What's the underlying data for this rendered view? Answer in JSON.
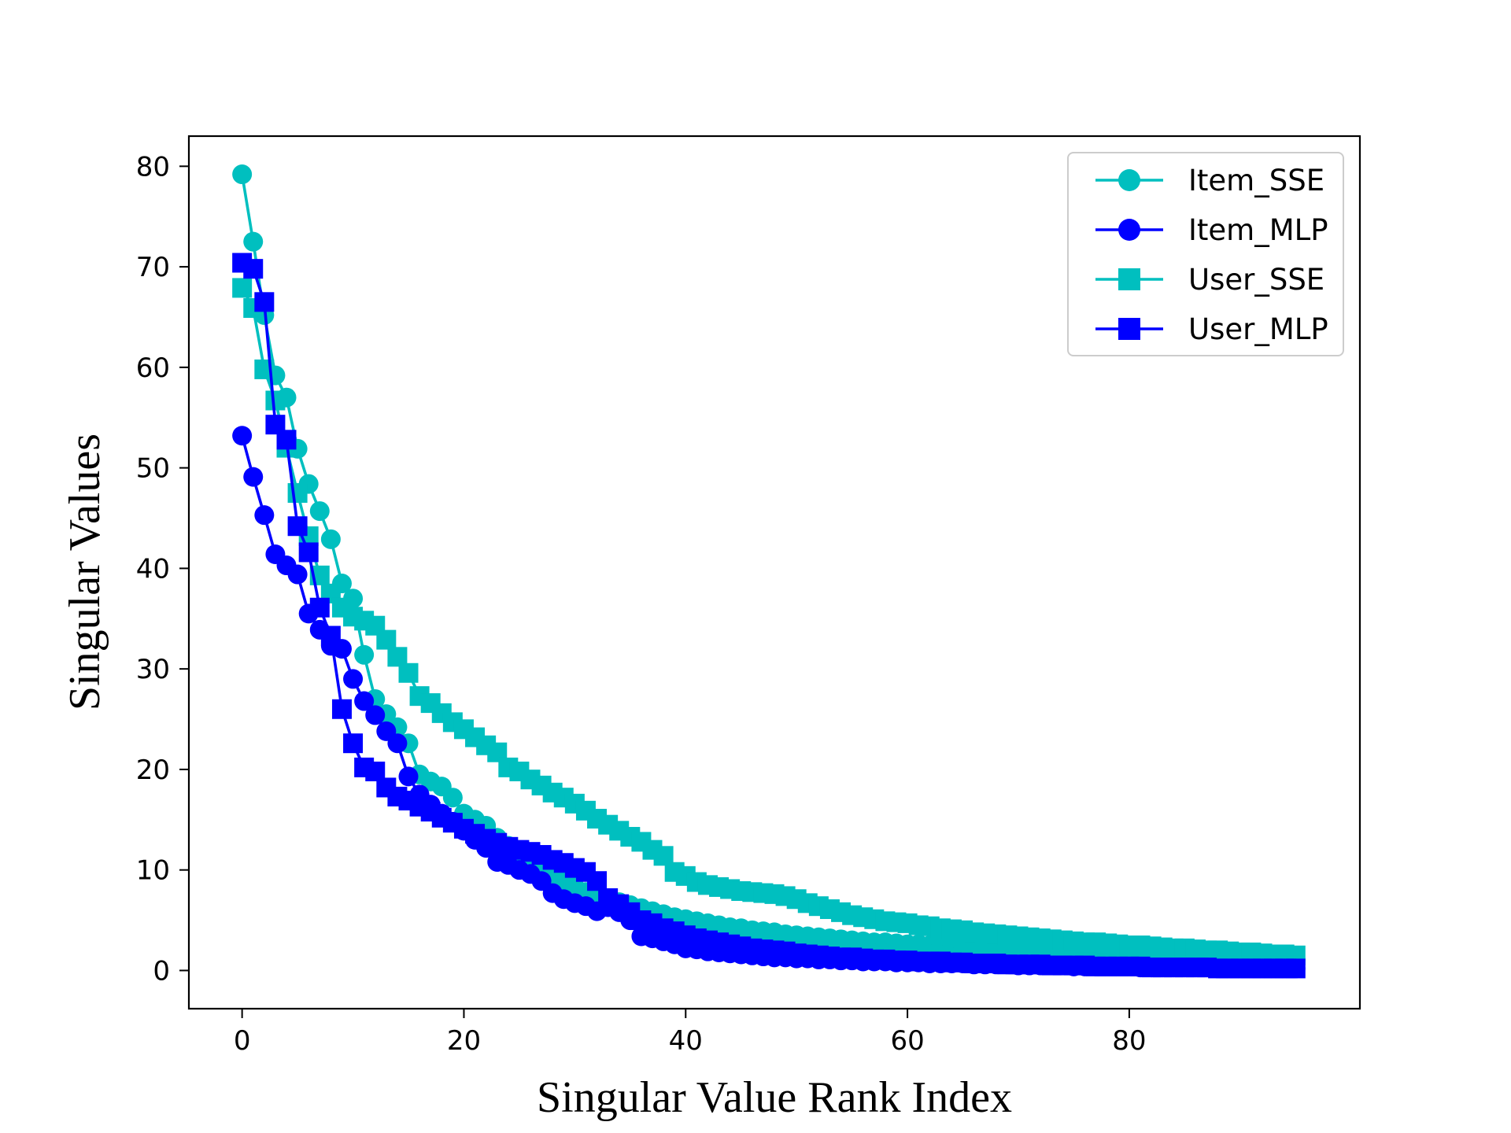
{
  "chart_data": {
    "type": "line",
    "title": "",
    "xlabel": "Singular Value Rank Index",
    "ylabel": "Singular Values",
    "xlim": [
      -4.8,
      100.8
    ],
    "ylim": [
      -3.8,
      83.0
    ],
    "xticks": [
      0,
      20,
      40,
      60,
      80
    ],
    "yticks": [
      0,
      10,
      20,
      30,
      40,
      50,
      60,
      70,
      80
    ],
    "legend_position": "top-right",
    "grid": false,
    "series": [
      {
        "name": "Item_SSE",
        "color": "#00bfbf",
        "marker": "circle",
        "values": [
          79.2,
          72.5,
          65.2,
          59.2,
          57.0,
          51.9,
          48.4,
          45.7,
          42.9,
          38.5,
          37.0,
          31.4,
          27.0,
          25.5,
          24.2,
          22.6,
          19.5,
          18.8,
          18.3,
          17.2,
          15.6,
          15.0,
          14.4,
          13.2,
          12.4,
          11.6,
          11.1,
          10.2,
          9.4,
          8.8,
          8.3,
          7.8,
          7.4,
          7.1,
          6.8,
          6.5,
          6.2,
          5.9,
          5.6,
          5.3,
          5.1,
          4.9,
          4.7,
          4.5,
          4.3,
          4.2,
          4.0,
          3.9,
          3.8,
          3.6,
          3.5,
          3.4,
          3.3,
          3.2,
          3.1,
          3.0,
          2.9,
          2.8,
          2.8,
          2.7,
          2.6,
          2.6,
          2.5,
          2.4,
          2.4,
          2.3,
          2.3,
          2.2,
          2.2,
          2.1,
          2.1,
          2.0,
          2.0,
          1.9,
          1.9,
          1.8,
          1.8,
          1.8,
          1.7,
          1.7,
          1.6,
          1.6,
          1.6,
          1.5,
          1.5,
          1.5,
          1.4,
          1.4,
          1.4,
          1.3,
          1.3,
          1.3,
          1.2,
          1.2,
          1.2,
          1.1
        ]
      },
      {
        "name": "Item_MLP",
        "color": "#0000ff",
        "marker": "circle",
        "values": [
          53.2,
          49.1,
          45.3,
          41.4,
          40.3,
          39.4,
          35.5,
          33.9,
          32.3,
          32.0,
          29.0,
          26.8,
          25.4,
          23.8,
          22.6,
          19.3,
          17.5,
          16.5,
          15.6,
          14.8,
          13.9,
          13.0,
          12.2,
          10.8,
          10.5,
          10.0,
          9.6,
          8.9,
          7.7,
          7.1,
          6.7,
          6.4,
          5.9,
          6.3,
          5.8,
          5.0,
          3.4,
          3.2,
          2.9,
          2.6,
          2.2,
          2.1,
          1.9,
          1.8,
          1.7,
          1.6,
          1.5,
          1.4,
          1.3,
          1.3,
          1.2,
          1.2,
          1.1,
          1.1,
          1.0,
          1.0,
          0.9,
          0.9,
          0.9,
          0.8,
          0.8,
          0.8,
          0.7,
          0.7,
          0.7,
          0.7,
          0.6,
          0.6,
          0.6,
          0.6,
          0.5,
          0.5,
          0.5,
          0.5,
          0.5,
          0.4,
          0.4,
          0.4,
          0.4,
          0.4,
          0.4,
          0.3,
          0.3,
          0.3,
          0.3,
          0.3,
          0.3,
          0.3,
          0.2,
          0.2,
          0.2,
          0.2,
          0.2,
          0.2,
          0.2,
          0.2
        ]
      },
      {
        "name": "User_SSE",
        "color": "#00bfbf",
        "marker": "square",
        "values": [
          67.9,
          65.9,
          59.8,
          56.7,
          52.0,
          47.5,
          43.2,
          39.3,
          37.5,
          36.1,
          35.2,
          34.8,
          34.3,
          32.9,
          31.2,
          29.6,
          27.3,
          26.6,
          25.6,
          24.7,
          24.0,
          23.2,
          22.4,
          21.7,
          20.2,
          19.8,
          19.0,
          18.4,
          17.7,
          17.2,
          16.6,
          15.9,
          15.1,
          14.5,
          13.9,
          13.3,
          12.8,
          12.0,
          11.4,
          9.8,
          9.4,
          8.8,
          8.5,
          8.3,
          8.1,
          7.9,
          7.8,
          7.7,
          7.6,
          7.4,
          7.1,
          6.7,
          6.4,
          6.1,
          5.8,
          5.5,
          5.3,
          5.1,
          4.9,
          4.8,
          4.7,
          4.5,
          4.4,
          4.2,
          4.1,
          4.0,
          3.8,
          3.7,
          3.6,
          3.5,
          3.4,
          3.3,
          3.2,
          3.1,
          3.0,
          2.9,
          2.8,
          2.8,
          2.7,
          2.6,
          2.5,
          2.5,
          2.4,
          2.3,
          2.2,
          2.2,
          2.1,
          2.0,
          2.0,
          1.9,
          1.8,
          1.8,
          1.7,
          1.6,
          1.6,
          1.5
        ]
      },
      {
        "name": "User_MLP",
        "color": "#0000ff",
        "marker": "square",
        "values": [
          70.4,
          69.8,
          66.5,
          54.3,
          52.8,
          44.2,
          41.6,
          36.1,
          33.3,
          26.0,
          22.6,
          20.2,
          19.8,
          18.2,
          17.3,
          16.9,
          16.3,
          15.8,
          15.2,
          14.7,
          14.1,
          13.6,
          13.1,
          12.7,
          12.3,
          12.0,
          11.8,
          11.5,
          11.0,
          10.7,
          10.2,
          9.8,
          8.9,
          7.2,
          6.6,
          5.8,
          5.0,
          4.7,
          4.2,
          3.9,
          3.5,
          3.2,
          3.0,
          2.8,
          2.6,
          2.4,
          2.2,
          2.1,
          2.0,
          1.9,
          1.7,
          1.6,
          1.5,
          1.4,
          1.3,
          1.3,
          1.2,
          1.1,
          1.1,
          1.0,
          1.0,
          0.9,
          0.9,
          0.9,
          0.8,
          0.8,
          0.7,
          0.7,
          0.7,
          0.6,
          0.6,
          0.6,
          0.6,
          0.5,
          0.5,
          0.5,
          0.5,
          0.4,
          0.4,
          0.4,
          0.4,
          0.4,
          0.3,
          0.3,
          0.3,
          0.3,
          0.3,
          0.3,
          0.2,
          0.2,
          0.2,
          0.2,
          0.2,
          0.2,
          0.2,
          0.2
        ]
      }
    ]
  }
}
